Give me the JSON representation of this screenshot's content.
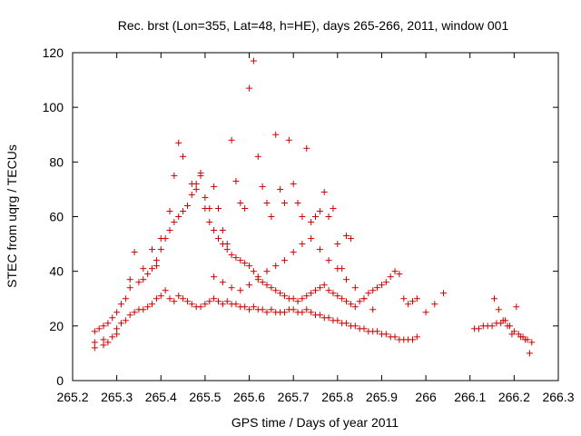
{
  "chart_data": {
    "type": "scatter",
    "title": "Rec. brst (Lon=355, Lat=48, h=HE), days 265-266, 2011, window 001",
    "xlabel": "GPS time / Days of year 2011",
    "ylabel": "STEC from uqrg / TECUs",
    "xlim": [
      265.2,
      266.3
    ],
    "ylim": [
      0,
      120
    ],
    "x_ticks": [
      "265.2",
      "265.3",
      "265.4",
      "265.5",
      "265.6",
      "265.7",
      "265.8",
      "265.9",
      "266",
      "266.1",
      "266.2",
      "266.3"
    ],
    "y_ticks": [
      "0",
      "20",
      "40",
      "60",
      "80",
      "100",
      "120"
    ],
    "grid": false,
    "legend": "none",
    "marker": "plus",
    "color": "#cc0000",
    "series": [
      {
        "x": [
          265.25,
          265.25,
          265.27,
          265.27,
          265.28,
          265.29,
          265.3,
          265.3,
          265.31,
          265.32,
          265.33,
          265.34,
          265.35,
          265.36,
          265.37,
          265.38,
          265.39,
          265.4,
          265.41,
          265.42,
          265.43,
          265.44,
          265.45,
          265.46,
          265.47,
          265.48,
          265.49,
          265.5,
          265.51,
          265.52,
          265.53,
          265.54,
          265.55,
          265.56,
          265.57,
          265.58,
          265.59,
          265.6,
          265.61,
          265.62,
          265.63,
          265.64,
          265.65,
          265.66,
          265.67,
          265.68,
          265.69,
          265.7,
          265.71,
          265.72,
          265.73,
          265.74,
          265.75,
          265.76,
          265.77,
          265.78,
          265.79,
          265.8,
          265.81,
          265.82,
          265.83,
          265.84,
          265.85,
          265.86,
          265.87,
          265.88,
          265.89,
          265.9,
          265.91,
          265.92,
          265.93,
          265.94,
          265.95,
          265.96,
          265.97,
          265.98
        ],
        "y": [
          12,
          14,
          13,
          15,
          14,
          16,
          17,
          19,
          21,
          22,
          24,
          25,
          26,
          26,
          27,
          28,
          30,
          31,
          33,
          30,
          29,
          31,
          30,
          29,
          28,
          27,
          27,
          28,
          29,
          30,
          29,
          28,
          29,
          28,
          28,
          27,
          27,
          26,
          27,
          26,
          26,
          25,
          26,
          25,
          25,
          25,
          26,
          26,
          25,
          25,
          26,
          25,
          24,
          24,
          23,
          23,
          22,
          22,
          21,
          21,
          20,
          20,
          19,
          19,
          18,
          18,
          18,
          17,
          17,
          16,
          16,
          15,
          15,
          15,
          15,
          16
        ]
      },
      {
        "x": [
          265.25,
          265.26,
          265.27,
          265.28,
          265.29,
          265.3,
          265.31,
          265.32,
          265.33,
          265.35,
          265.36,
          265.37,
          265.38,
          265.39,
          265.4,
          265.41,
          265.42,
          265.43,
          265.44,
          265.45,
          265.46,
          265.47,
          265.48,
          265.49,
          265.5,
          265.51,
          265.52,
          265.53,
          265.54,
          265.55,
          265.56,
          265.57,
          265.58,
          265.59,
          265.6,
          265.61,
          265.62,
          265.63,
          265.64,
          265.65,
          265.66,
          265.67,
          265.68,
          265.69,
          265.7,
          265.71,
          265.72,
          265.73,
          265.74,
          265.75,
          265.76,
          265.77,
          265.78,
          265.79,
          265.8,
          265.81,
          265.82,
          265.83,
          265.84,
          265.85,
          265.86,
          265.87,
          265.88,
          265.89,
          265.9,
          265.91,
          265.92,
          265.93,
          265.94,
          265.95,
          265.96,
          265.97,
          265.98,
          266.0,
          266.02,
          266.04
        ],
        "y": [
          18,
          19,
          20,
          21,
          23,
          25,
          28,
          30,
          34,
          36,
          37,
          39,
          41,
          44,
          48,
          52,
          55,
          58,
          60,
          62,
          64,
          68,
          72,
          75,
          63,
          58,
          55,
          52,
          50,
          48,
          46,
          45,
          44,
          43,
          42,
          40,
          38,
          36,
          35,
          34,
          33,
          32,
          31,
          30,
          30,
          29,
          30,
          31,
          32,
          33,
          34,
          35,
          33,
          32,
          31,
          30,
          29,
          28,
          27,
          29,
          30,
          32,
          33,
          34,
          35,
          36,
          38,
          40,
          39,
          30,
          28,
          29,
          30,
          25,
          28,
          32
        ]
      },
      {
        "x": [
          265.33,
          265.34,
          265.36,
          265.38,
          265.39,
          265.4,
          265.42,
          265.43,
          265.44,
          265.45,
          265.47,
          265.48,
          265.49,
          265.5,
          265.51,
          265.52,
          265.53,
          265.54,
          265.55,
          265.56,
          265.57,
          265.58,
          265.59,
          265.6,
          265.61,
          265.62,
          265.63,
          265.64,
          265.65,
          265.66,
          265.67,
          265.68,
          265.69,
          265.7,
          265.71,
          265.72,
          265.73,
          265.74,
          265.75,
          265.76,
          265.77,
          265.78,
          265.79,
          265.8,
          265.81,
          265.82,
          265.83
        ],
        "y": [
          37,
          47,
          41,
          48,
          42,
          52,
          62,
          75,
          87,
          82,
          72,
          70,
          76,
          67,
          63,
          71,
          63,
          55,
          50,
          88,
          73,
          65,
          63,
          107,
          117,
          82,
          71,
          65,
          60,
          90,
          70,
          65,
          88,
          72,
          65,
          60,
          85,
          58,
          60,
          62,
          69,
          60,
          63,
          50,
          41,
          53,
          52
        ]
      },
      {
        "x": [
          265.52,
          265.54,
          265.56,
          265.58,
          265.6,
          265.62,
          265.64,
          265.66,
          265.68,
          265.7,
          265.72,
          265.74,
          265.76,
          265.78,
          265.8,
          265.82,
          265.84,
          265.86,
          265.88
        ],
        "y": [
          38,
          36,
          34,
          33,
          35,
          37,
          40,
          42,
          44,
          47,
          50,
          52,
          48,
          44,
          41,
          37,
          34,
          30,
          26
        ]
      },
      {
        "x": [
          266.11,
          266.12,
          266.13,
          266.14,
          266.15,
          266.16,
          266.17,
          266.18,
          266.19,
          266.2,
          266.21,
          266.22,
          266.23,
          266.24,
          266.155,
          266.165,
          266.175,
          266.185,
          266.195,
          266.205,
          266.215,
          266.225,
          266.235
        ],
        "y": [
          19,
          19,
          20,
          20,
          20,
          21,
          21,
          22,
          20,
          18,
          17,
          16,
          15,
          14,
          30,
          26,
          22,
          20,
          17,
          27,
          16,
          15,
          10
        ]
      }
    ]
  }
}
